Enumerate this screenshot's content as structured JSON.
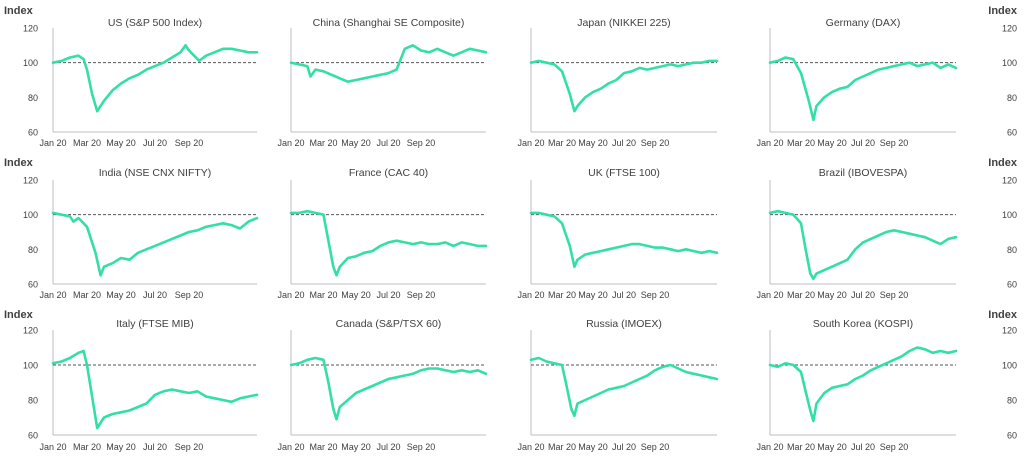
{
  "y_axis_title": "Index",
  "colors": {
    "line": "#33dfa7",
    "baseline": "#555555",
    "axis": "#bfbfbf",
    "text": "#404040"
  },
  "chart_data": [
    {
      "type": "line",
      "title": "US (S&P 500 Index)",
      "x_ticks": [
        "Jan 20",
        "Mar 20",
        "May 20",
        "Jul 20",
        "Sep 20"
      ],
      "y_ticks": [
        60,
        80,
        100,
        120
      ],
      "ylim": [
        60,
        120
      ],
      "baseline": 100,
      "x": [
        0,
        0.5,
        1,
        1.5,
        1.8,
        2,
        2.3,
        2.6,
        3,
        3.5,
        4,
        4.5,
        5,
        5.5,
        6,
        6.5,
        7,
        7.5,
        7.8,
        8,
        8.3,
        8.6,
        9,
        9.5,
        10,
        10.5,
        11,
        11.5,
        12
      ],
      "values": [
        100,
        101,
        103,
        104,
        102,
        96,
        82,
        72,
        78,
        84,
        88,
        91,
        93,
        96,
        98,
        100,
        103,
        106,
        110,
        107,
        104,
        101,
        104,
        106,
        108,
        108,
        107,
        106,
        106
      ]
    },
    {
      "type": "line",
      "title": "China (Shanghai SE Composite)",
      "x_ticks": [
        "Jan 20",
        "Mar 20",
        "May 20",
        "Jul 20",
        "Sep 20"
      ],
      "y_ticks": [
        60,
        80,
        100,
        120
      ],
      "ylim": [
        60,
        120
      ],
      "baseline": 100,
      "x": [
        0,
        0.5,
        1,
        1.2,
        1.5,
        2,
        2.5,
        3,
        3.5,
        4,
        4.5,
        5,
        5.5,
        6,
        6.5,
        7,
        7.5,
        8,
        8.5,
        9,
        9.5,
        10,
        10.5,
        11,
        11.5,
        12
      ],
      "values": [
        100,
        99,
        98,
        92,
        96,
        95,
        93,
        91,
        89,
        90,
        91,
        92,
        93,
        94,
        96,
        108,
        110,
        107,
        106,
        108,
        106,
        104,
        106,
        108,
        107,
        106
      ]
    },
    {
      "type": "line",
      "title": "Japan (NIKKEI 225)",
      "x_ticks": [
        "Jan 20",
        "Mar 20",
        "May 20",
        "Jul 20",
        "Sep 20"
      ],
      "y_ticks": [
        60,
        80,
        100,
        120
      ],
      "ylim": [
        60,
        120
      ],
      "baseline": 100,
      "x": [
        0,
        0.5,
        1,
        1.5,
        2,
        2.5,
        2.8,
        3,
        3.5,
        4,
        4.5,
        5,
        5.5,
        6,
        6.5,
        7,
        7.5,
        8,
        8.5,
        9,
        9.5,
        10,
        10.5,
        11,
        11.5,
        12
      ],
      "values": [
        100,
        101,
        100,
        99,
        95,
        82,
        72,
        75,
        80,
        83,
        85,
        88,
        90,
        94,
        95,
        97,
        96,
        97,
        98,
        99,
        98,
        99,
        100,
        100,
        101,
        101
      ]
    },
    {
      "type": "line",
      "title": "Germany (DAX)",
      "x_ticks": [
        "Jan 20",
        "Mar 20",
        "May 20",
        "Jul 20",
        "Sep 20"
      ],
      "y_ticks": [
        60,
        80,
        100,
        120
      ],
      "ylim": [
        60,
        120
      ],
      "baseline": 100,
      "x": [
        0,
        0.5,
        1,
        1.5,
        2,
        2.5,
        2.8,
        3,
        3.5,
        4,
        4.5,
        5,
        5.5,
        6,
        6.5,
        7,
        7.5,
        8,
        8.5,
        9,
        9.5,
        10,
        10.5,
        11,
        11.5,
        12
      ],
      "values": [
        100,
        101,
        103,
        102,
        94,
        78,
        67,
        75,
        80,
        83,
        85,
        86,
        90,
        92,
        94,
        96,
        97,
        98,
        99,
        100,
        98,
        99,
        100,
        97,
        99,
        97
      ]
    },
    {
      "type": "line",
      "title": "India (NSE CNX NIFTY)",
      "x_ticks": [
        "Jan 20",
        "Mar 20",
        "May 20",
        "Jul 20",
        "Sep 20"
      ],
      "y_ticks": [
        60,
        80,
        100,
        120
      ],
      "ylim": [
        60,
        120
      ],
      "baseline": 100,
      "x": [
        0,
        0.5,
        1,
        1.2,
        1.5,
        2,
        2.5,
        2.8,
        3,
        3.5,
        4,
        4.5,
        5,
        5.5,
        6,
        6.5,
        7,
        7.5,
        8,
        8.5,
        9,
        9.5,
        10,
        10.5,
        11,
        11.5,
        12
      ],
      "values": [
        101,
        100,
        99,
        96,
        98,
        93,
        78,
        65,
        70,
        72,
        75,
        74,
        78,
        80,
        82,
        84,
        86,
        88,
        90,
        91,
        93,
        94,
        95,
        94,
        92,
        96,
        98
      ]
    },
    {
      "type": "line",
      "title": "France (CAC 40)",
      "x_ticks": [
        "Jan 20",
        "Mar 20",
        "May 20",
        "Jul 20",
        "Sep 20"
      ],
      "y_ticks": [
        60,
        80,
        100,
        120
      ],
      "ylim": [
        60,
        120
      ],
      "baseline": 100,
      "x": [
        0,
        0.5,
        1,
        1.5,
        2,
        2.3,
        2.6,
        2.8,
        3,
        3.5,
        4,
        4.5,
        5,
        5.5,
        6,
        6.5,
        7,
        7.5,
        8,
        8.5,
        9,
        9.5,
        10,
        10.5,
        11,
        11.5,
        12
      ],
      "values": [
        101,
        101,
        102,
        101,
        100,
        85,
        70,
        65,
        70,
        75,
        76,
        78,
        79,
        82,
        84,
        85,
        84,
        83,
        84,
        83,
        83,
        84,
        82,
        84,
        83,
        82,
        82
      ]
    },
    {
      "type": "line",
      "title": "UK (FTSE 100)",
      "x_ticks": [
        "Jan 20",
        "Mar 20",
        "May 20",
        "Jul 20",
        "Sep 20"
      ],
      "y_ticks": [
        60,
        80,
        100,
        120
      ],
      "ylim": [
        60,
        120
      ],
      "baseline": 100,
      "x": [
        0,
        0.5,
        1,
        1.5,
        2,
        2.5,
        2.8,
        3,
        3.5,
        4,
        4.5,
        5,
        5.5,
        6,
        6.5,
        7,
        7.5,
        8,
        8.5,
        9,
        9.5,
        10,
        10.5,
        11,
        11.5,
        12
      ],
      "values": [
        101,
        101,
        100,
        99,
        95,
        82,
        70,
        74,
        77,
        78,
        79,
        80,
        81,
        82,
        83,
        83,
        82,
        81,
        81,
        80,
        79,
        80,
        79,
        78,
        79,
        78
      ]
    },
    {
      "type": "line",
      "title": "Brazil (IBOVESPA)",
      "x_ticks": [
        "Jan 20",
        "Mar 20",
        "May 20",
        "Jul 20",
        "Sep 20"
      ],
      "y_ticks": [
        60,
        80,
        100,
        120
      ],
      "ylim": [
        60,
        120
      ],
      "baseline": 100,
      "x": [
        0,
        0.5,
        1,
        1.5,
        2,
        2.3,
        2.6,
        2.8,
        3,
        3.5,
        4,
        4.5,
        5,
        5.5,
        6,
        6.5,
        7,
        7.5,
        8,
        8.5,
        9,
        9.5,
        10,
        10.5,
        11,
        11.5,
        12
      ],
      "values": [
        101,
        102,
        101,
        100,
        95,
        80,
        66,
        63,
        66,
        68,
        70,
        72,
        74,
        80,
        84,
        86,
        88,
        90,
        91,
        90,
        89,
        88,
        87,
        85,
        83,
        86,
        87
      ]
    },
    {
      "type": "line",
      "title": "Italy (FTSE MIB)",
      "x_ticks": [
        "Jan 20",
        "Mar 20",
        "May 20",
        "Jul 20",
        "Sep 20"
      ],
      "y_ticks": [
        60,
        80,
        100,
        120
      ],
      "ylim": [
        60,
        120
      ],
      "baseline": 100,
      "x": [
        0,
        0.5,
        1,
        1.5,
        1.8,
        2,
        2.3,
        2.6,
        3,
        3.5,
        4,
        4.5,
        5,
        5.5,
        6,
        6.5,
        7,
        7.5,
        8,
        8.5,
        9,
        9.5,
        10,
        10.5,
        11,
        11.5,
        12
      ],
      "values": [
        101,
        102,
        104,
        107,
        108,
        100,
        82,
        64,
        70,
        72,
        73,
        74,
        76,
        78,
        83,
        85,
        86,
        85,
        84,
        85,
        82,
        81,
        80,
        79,
        81,
        82,
        83
      ]
    },
    {
      "type": "line",
      "title": "Canada (S&P/TSX 60)",
      "x_ticks": [
        "Jan 20",
        "Mar 20",
        "May 20",
        "Jul 20",
        "Sep 20"
      ],
      "y_ticks": [
        60,
        80,
        100,
        120
      ],
      "ylim": [
        60,
        120
      ],
      "baseline": 100,
      "x": [
        0,
        0.5,
        1,
        1.5,
        2,
        2.3,
        2.6,
        2.8,
        3,
        3.5,
        4,
        4.5,
        5,
        5.5,
        6,
        6.5,
        7,
        7.5,
        8,
        8.5,
        9,
        9.5,
        10,
        10.5,
        11,
        11.5,
        12
      ],
      "values": [
        100,
        101,
        103,
        104,
        103,
        90,
        75,
        69,
        76,
        80,
        84,
        86,
        88,
        90,
        92,
        93,
        94,
        95,
        97,
        98,
        98,
        97,
        96,
        97,
        96,
        97,
        95
      ]
    },
    {
      "type": "line",
      "title": "Russia (IMOEX)",
      "x_ticks": [
        "Jan 20",
        "Mar 20",
        "May 20",
        "Jul 20",
        "Sep 20"
      ],
      "y_ticks": [
        60,
        80,
        100,
        120
      ],
      "ylim": [
        60,
        120
      ],
      "baseline": 100,
      "x": [
        0,
        0.5,
        1,
        1.5,
        2,
        2.3,
        2.6,
        2.8,
        3,
        3.5,
        4,
        4.5,
        5,
        5.5,
        6,
        6.5,
        7,
        7.5,
        8,
        8.5,
        9,
        9.5,
        10,
        10.5,
        11,
        11.5,
        12
      ],
      "values": [
        103,
        104,
        102,
        101,
        100,
        88,
        75,
        71,
        78,
        80,
        82,
        84,
        86,
        87,
        88,
        90,
        92,
        94,
        97,
        99,
        100,
        98,
        96,
        95,
        94,
        93,
        92
      ]
    },
    {
      "type": "line",
      "title": "South Korea (KOSPI)",
      "x_ticks": [
        "Jan 20",
        "Mar 20",
        "May 20",
        "Jul 20",
        "Sep 20"
      ],
      "y_ticks": [
        60,
        80,
        100,
        120
      ],
      "ylim": [
        60,
        120
      ],
      "baseline": 100,
      "x": [
        0,
        0.5,
        1,
        1.5,
        2,
        2.3,
        2.6,
        2.8,
        3,
        3.5,
        4,
        4.5,
        5,
        5.5,
        6,
        6.5,
        7,
        7.5,
        8,
        8.5,
        9,
        9.5,
        10,
        10.5,
        11,
        11.5,
        12
      ],
      "values": [
        100,
        99,
        101,
        100,
        96,
        85,
        74,
        68,
        78,
        84,
        87,
        88,
        89,
        92,
        94,
        97,
        99,
        101,
        103,
        105,
        108,
        110,
        109,
        107,
        108,
        107,
        108
      ]
    }
  ]
}
